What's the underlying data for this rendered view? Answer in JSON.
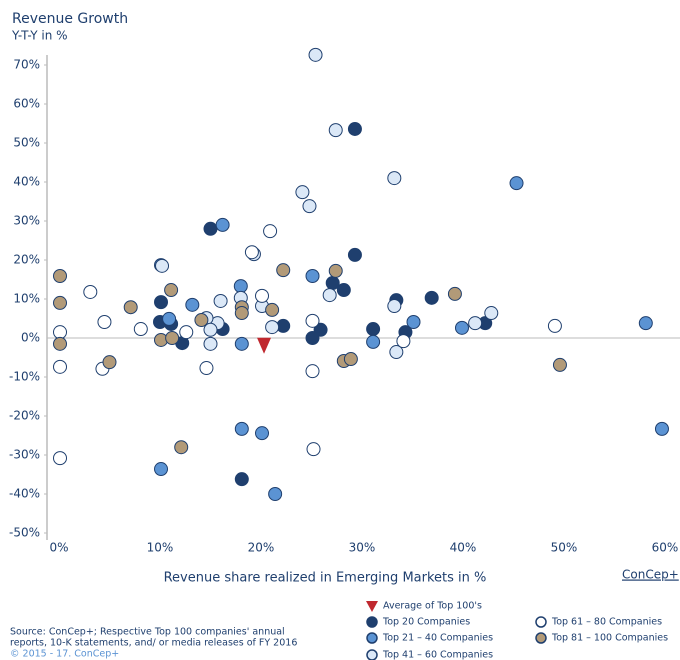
{
  "chart_data": {
    "type": "scatter",
    "title": "Revenue Growth",
    "subtitle": "Y-T-Y in %",
    "x_label": "Revenue share realized in Emerging Markets in %",
    "logo": "ConCep+",
    "source": [
      "Source: ConCep+; Respective Top 100 companies' annual",
      "reports, 10-K statements, and/ or media releases of FY 2016",
      "© 2015 - 17. ConCep+"
    ],
    "xlim": [
      0,
      60
    ],
    "ylim": [
      -50,
      70
    ],
    "xticks": [
      {
        "value": 0,
        "label": "0%"
      },
      {
        "value": 10,
        "label": "10%"
      },
      {
        "value": 20,
        "label": "20%"
      },
      {
        "value": 30,
        "label": "30%"
      },
      {
        "value": 40,
        "label": "40%"
      },
      {
        "value": 50,
        "label": "50%"
      },
      {
        "value": 60,
        "label": "60%"
      }
    ],
    "yticks": [
      {
        "value": -50,
        "label": "-50%"
      },
      {
        "value": -40,
        "label": "-40%"
      },
      {
        "value": -30,
        "label": "-30%"
      },
      {
        "value": -20,
        "label": "-20%"
      },
      {
        "value": -10,
        "label": "-10%"
      },
      {
        "value": 0,
        "label": "0%"
      },
      {
        "value": 10,
        "label": "10%"
      },
      {
        "value": 20,
        "label": "20%"
      },
      {
        "value": 30,
        "label": "30%"
      },
      {
        "value": 40,
        "label": "40%"
      },
      {
        "value": 50,
        "label": "50%"
      },
      {
        "value": 60,
        "label": "60%"
      },
      {
        "value": 70,
        "label": "70%"
      }
    ],
    "average": {
      "name": "Average of Top 100's",
      "color": "#c0282f",
      "x": 20.3,
      "y": -2
    },
    "series": [
      {
        "name": "Top 20 Companies",
        "color": "#1f3f6e",
        "stroke": "#1f3f6e",
        "x": [
          15.0,
          29.3,
          29.3,
          27.1,
          28.2,
          10.1,
          10.0,
          11.1,
          16.2,
          12.2,
          22.2,
          25.9,
          25.1,
          31.1,
          33.4,
          36.9,
          34.3,
          42.2,
          18.1
        ],
        "values": [
          28,
          53.6,
          21.3,
          14.1,
          12.3,
          9.2,
          4.1,
          3.6,
          2.3,
          -1.3,
          3.1,
          2.1,
          0,
          2.3,
          9.7,
          10.3,
          1.5,
          3.8,
          -36.2
        ]
      },
      {
        "name": "Top 21 – 40 Companies",
        "color": "#5b93d3",
        "stroke": "#1f3f6e",
        "x": [
          16.2,
          10.1,
          18.0,
          25.1,
          13.2,
          10.9,
          18.1,
          31.1,
          35.1,
          39.9,
          45.3,
          58.1,
          18.1,
          20.1,
          21.4,
          10.1,
          59.7
        ],
        "values": [
          29,
          18.7,
          13.3,
          15.9,
          8.5,
          4.9,
          -1.5,
          -1,
          4.1,
          2.6,
          39.7,
          3.8,
          -23.3,
          -24.4,
          -40,
          -33.6,
          -23.3
        ]
      },
      {
        "name": "Top 41 – 60 Companies",
        "color": "#dbe8f7",
        "stroke": "#1f3f6e",
        "x": [
          25.4,
          27.4,
          33.2,
          24.1,
          24.8,
          19.3,
          10.2,
          16.0,
          18.0,
          26.8,
          20.1,
          15.7,
          14.6,
          15.0,
          33.2,
          41.2,
          42.8,
          33.4,
          21.1,
          15.0
        ],
        "values": [
          72.6,
          53.3,
          41,
          37.4,
          33.8,
          21.5,
          18.5,
          9.5,
          10.3,
          11,
          8.2,
          3.8,
          5.1,
          2.1,
          8.2,
          3.8,
          6.4,
          -3.6,
          2.8,
          -1.5
        ]
      },
      {
        "name": "Top 61 – 80 Companies",
        "color": "#ffffff",
        "stroke": "#1f3f6e",
        "x": [
          3.1,
          0.1,
          0.1,
          4.5,
          4.3,
          8.1,
          12.6,
          14.6,
          20.9,
          19.1,
          20.1,
          25.1,
          25.1,
          34.1,
          49.1,
          25.2,
          0.1
        ],
        "values": [
          11.8,
          1.5,
          -7.4,
          4.1,
          -7.9,
          2.3,
          1.5,
          -7.7,
          27.4,
          22,
          10.8,
          4.4,
          -8.5,
          -0.8,
          3.1,
          -28.5,
          -30.8
        ]
      },
      {
        "name": "Top 81 – 100 Companies",
        "color": "#b29a78",
        "stroke": "#1f3f6e",
        "x": [
          0.1,
          0.1,
          0.1,
          5.0,
          7.1,
          11.1,
          10.1,
          11.2,
          14.1,
          18.1,
          18.1,
          21.1,
          22.2,
          27.4,
          28.2,
          28.9,
          39.2,
          49.6,
          12.1
        ],
        "values": [
          15.9,
          9,
          -1.5,
          -6.2,
          7.9,
          12.3,
          -0.5,
          0,
          4.6,
          7.9,
          6.4,
          7.2,
          17.4,
          17.2,
          -5.9,
          -5.4,
          11.3,
          -6.9,
          -28
        ]
      }
    ]
  }
}
